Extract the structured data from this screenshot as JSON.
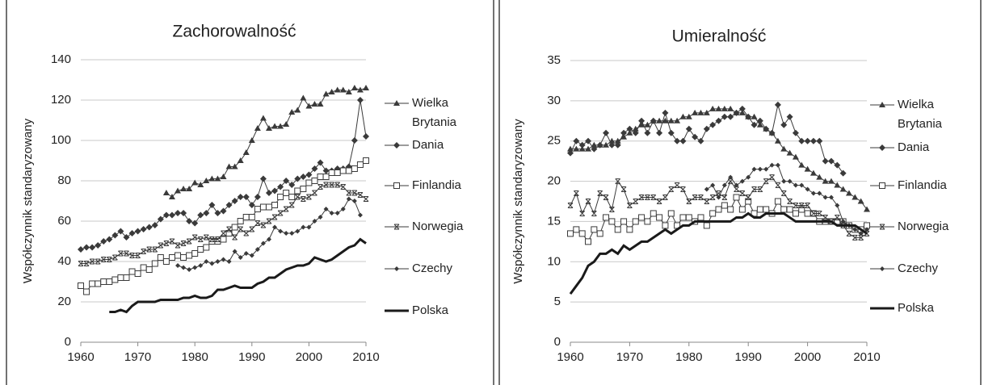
{
  "chart_data": [
    {
      "type": "line",
      "title": "Zachorowalność",
      "y_label": "Współczynnik standaryzowany",
      "x": [
        1960,
        1961,
        1962,
        1963,
        1964,
        1965,
        1966,
        1967,
        1968,
        1969,
        1970,
        1971,
        1972,
        1973,
        1974,
        1975,
        1976,
        1977,
        1978,
        1979,
        1980,
        1981,
        1982,
        1983,
        1984,
        1985,
        1986,
        1987,
        1988,
        1989,
        1990,
        1991,
        1992,
        1993,
        1994,
        1995,
        1996,
        1997,
        1998,
        1999,
        2000,
        2001,
        2002,
        2003,
        2004,
        2005,
        2006,
        2007,
        2008,
        2009,
        2010
      ],
      "xlim": [
        1960,
        2010
      ],
      "xticks": [
        1960,
        1970,
        1980,
        1990,
        2000,
        2010
      ],
      "ylim": [
        0,
        140
      ],
      "yticks": [
        0,
        20,
        40,
        60,
        80,
        100,
        120,
        140
      ],
      "grid": true,
      "series": [
        {
          "name": "Wielka Brytania",
          "color": "#3a3a3a",
          "marker": "triangle",
          "line_width": 1,
          "values": [
            null,
            null,
            null,
            null,
            null,
            null,
            null,
            null,
            null,
            null,
            null,
            null,
            null,
            null,
            null,
            74,
            72,
            75,
            76,
            76,
            79,
            78,
            80,
            81,
            81,
            82,
            87,
            87,
            90,
            94,
            100,
            106,
            111,
            106,
            107,
            107,
            108,
            114,
            115,
            121,
            117,
            118,
            118,
            123,
            124,
            125,
            125,
            124,
            126,
            125,
            126
          ]
        },
        {
          "name": "Dania",
          "color": "#3a3a3a",
          "marker": "diamond",
          "line_width": 1,
          "values": [
            46,
            47,
            47,
            48,
            50,
            51,
            53,
            55,
            52,
            54,
            55,
            56,
            57,
            58,
            61,
            63,
            63,
            64,
            64,
            60,
            59,
            63,
            64,
            68,
            64,
            65,
            68,
            70,
            72,
            72,
            68,
            72,
            81,
            74,
            75,
            77,
            80,
            78,
            81,
            82,
            83,
            86,
            89,
            85,
            85,
            86,
            86,
            87,
            100,
            120,
            102
          ]
        },
        {
          "name": "Finlandia",
          "color": "#3a3a3a",
          "marker": "square",
          "line_width": 1,
          "values": [
            28,
            25,
            29,
            29,
            30,
            30,
            31,
            32,
            32,
            35,
            34,
            37,
            36,
            39,
            42,
            40,
            42,
            43,
            42,
            43,
            44,
            46,
            47,
            50,
            50,
            51,
            54,
            57,
            60,
            62,
            62,
            66,
            67,
            67,
            68,
            72,
            74,
            72,
            75,
            76,
            79,
            80,
            82,
            82,
            84,
            84,
            85,
            85,
            86,
            88,
            90
          ]
        },
        {
          "name": "Norwegia",
          "color": "#3a3a3a",
          "marker": "xbar",
          "line_width": 1,
          "values": [
            39,
            39,
            40,
            40,
            41,
            41,
            42,
            44,
            44,
            43,
            43,
            45,
            46,
            46,
            48,
            49,
            50,
            48,
            49,
            50,
            52,
            51,
            52,
            51,
            51,
            54,
            56,
            52,
            56,
            54,
            56,
            59,
            58,
            60,
            62,
            64,
            66,
            68,
            72,
            71,
            72,
            74,
            77,
            78,
            78,
            78,
            77,
            74,
            74,
            73,
            71
          ]
        },
        {
          "name": "Czechy",
          "color": "#3a3a3a",
          "marker": "small-diamond",
          "line_width": 1,
          "values": [
            null,
            null,
            null,
            null,
            null,
            null,
            null,
            null,
            null,
            null,
            null,
            null,
            null,
            null,
            null,
            null,
            null,
            38,
            37,
            36,
            37,
            38,
            40,
            39,
            40,
            41,
            40,
            45,
            42,
            44,
            43,
            46,
            49,
            51,
            57,
            55,
            54,
            54,
            55,
            57,
            57,
            60,
            62,
            66,
            64,
            64,
            66,
            71,
            70,
            63,
            null
          ]
        },
        {
          "name": "Polska",
          "color": "#1a1a1a",
          "marker": "none",
          "line_width": 3,
          "values": [
            null,
            null,
            null,
            null,
            null,
            15,
            15,
            16,
            15,
            18,
            20,
            20,
            20,
            20,
            21,
            21,
            21,
            21,
            22,
            22,
            23,
            22,
            22,
            23,
            26,
            26,
            27,
            28,
            27,
            27,
            27,
            29,
            30,
            32,
            32,
            34,
            36,
            37,
            38,
            38,
            39,
            42,
            41,
            40,
            41,
            43,
            45,
            47,
            48,
            51,
            49
          ]
        }
      ]
    },
    {
      "type": "line",
      "title": "Umieralność",
      "y_label": "Współczynnik standaryzowany",
      "x": [
        1960,
        1961,
        1962,
        1963,
        1964,
        1965,
        1966,
        1967,
        1968,
        1969,
        1970,
        1971,
        1972,
        1973,
        1974,
        1975,
        1976,
        1977,
        1978,
        1979,
        1980,
        1981,
        1982,
        1983,
        1984,
        1985,
        1986,
        1987,
        1988,
        1989,
        1990,
        1991,
        1992,
        1993,
        1994,
        1995,
        1996,
        1997,
        1998,
        1999,
        2000,
        2001,
        2002,
        2003,
        2004,
        2005,
        2006,
        2007,
        2008,
        2009,
        2010
      ],
      "xlim": [
        1960,
        2010
      ],
      "xticks": [
        1960,
        1970,
        1980,
        1990,
        2000,
        2010
      ],
      "ylim": [
        0,
        35
      ],
      "yticks": [
        0,
        5,
        10,
        15,
        20,
        25,
        30,
        35
      ],
      "grid": true,
      "series": [
        {
          "name": "Wielka Brytania",
          "color": "#3a3a3a",
          "marker": "triangle",
          "line_width": 1,
          "values": [
            24,
            24,
            24,
            24,
            24.5,
            24.5,
            24.5,
            25,
            25,
            25.5,
            26,
            26.5,
            27,
            27,
            27.5,
            27.5,
            27.5,
            27.5,
            27.5,
            28,
            28,
            28.5,
            28.5,
            28.5,
            29,
            29,
            29,
            29,
            28.5,
            28.5,
            28,
            28,
            27,
            26.5,
            26,
            25,
            24,
            23.5,
            23,
            22,
            21.5,
            21,
            20.5,
            20,
            20,
            19.5,
            19,
            18.5,
            18,
            17.5,
            16.5
          ]
        },
        {
          "name": "Dania",
          "color": "#3a3a3a",
          "marker": "diamond",
          "line_width": 1,
          "values": [
            23.5,
            25,
            24.5,
            25,
            24,
            24.5,
            26,
            24.5,
            24.5,
            26,
            26.5,
            26,
            27.5,
            26,
            27.5,
            26,
            28.5,
            26,
            25,
            25,
            26.5,
            25.5,
            25,
            26.5,
            27,
            27.5,
            28,
            28,
            28.5,
            29,
            28,
            27,
            27.5,
            26.5,
            26,
            29.5,
            27,
            28,
            26,
            25,
            25,
            25,
            25,
            22.5,
            22.5,
            22,
            21,
            null,
            null,
            null,
            null
          ]
        },
        {
          "name": "Finlandia",
          "color": "#3a3a3a",
          "marker": "square",
          "line_width": 1,
          "values": [
            13.5,
            14,
            13.5,
            12.5,
            14,
            13.5,
            15.5,
            15,
            14,
            15,
            14,
            15,
            15.5,
            15,
            16,
            15.5,
            14.5,
            16,
            14.5,
            15.5,
            15.5,
            15,
            15.5,
            14.5,
            16,
            16.5,
            17,
            16.5,
            18,
            16.5,
            17.5,
            16,
            16.5,
            16.5,
            16,
            17.5,
            16.5,
            16.5,
            16,
            16.5,
            16,
            16,
            15,
            15,
            15,
            15,
            15,
            14.5,
            14,
            14,
            14.5
          ]
        },
        {
          "name": "Norwegia",
          "color": "#3a3a3a",
          "marker": "xbar",
          "line_width": 1,
          "values": [
            17,
            18.5,
            16,
            17.5,
            16,
            18.5,
            18,
            16.5,
            20,
            19,
            17,
            17.5,
            18,
            18,
            18,
            17.5,
            18,
            19,
            19.5,
            19,
            17.5,
            18,
            18,
            17.5,
            18,
            18.5,
            18,
            20,
            19,
            18.5,
            18,
            19,
            19,
            20,
            20.5,
            19.5,
            18.5,
            17.5,
            17,
            17,
            17,
            16,
            16,
            15.5,
            15,
            15.5,
            14.5,
            13.5,
            13,
            13,
            13.5
          ]
        },
        {
          "name": "Czechy",
          "color": "#3a3a3a",
          "marker": "small-diamond",
          "line_width": 1,
          "values": [
            null,
            null,
            null,
            null,
            null,
            null,
            null,
            null,
            null,
            null,
            null,
            null,
            null,
            null,
            null,
            null,
            null,
            null,
            null,
            null,
            null,
            null,
            null,
            19,
            19.5,
            18,
            19.5,
            20.5,
            19.5,
            20,
            20.5,
            21.5,
            21.5,
            21.5,
            22,
            22,
            20,
            20,
            19.5,
            19.5,
            19,
            18.5,
            18.5,
            18,
            18,
            17,
            15,
            14.5,
            14,
            13.5,
            14
          ]
        },
        {
          "name": "Polska",
          "color": "#1a1a1a",
          "marker": "none",
          "line_width": 3,
          "values": [
            6,
            7,
            8,
            9.5,
            10,
            11,
            11,
            11.5,
            11,
            12,
            11.5,
            12,
            12.5,
            12.5,
            13,
            13.5,
            14,
            13.5,
            14,
            14.5,
            14.5,
            15,
            15,
            15,
            15,
            15,
            15,
            15,
            15.5,
            15.5,
            16,
            15.5,
            15.5,
            16,
            16,
            16,
            16,
            15.5,
            15,
            15,
            15,
            15,
            15,
            15,
            15,
            14.5,
            14.5,
            14.5,
            14.5,
            14,
            13.5
          ]
        }
      ]
    }
  ]
}
